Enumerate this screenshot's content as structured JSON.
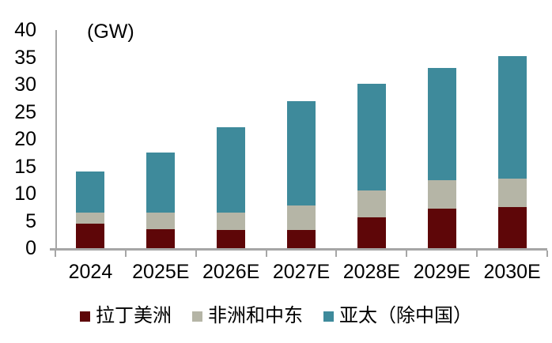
{
  "chart_data": {
    "type": "bar",
    "stacked": true,
    "unit_label": "(GW)",
    "categories": [
      "2024",
      "2025E",
      "2026E",
      "2027E",
      "2028E",
      "2029E",
      "2030E"
    ],
    "series": [
      {
        "name": "拉丁美洲",
        "color": "#5e0608",
        "values": [
          4.5,
          3.5,
          3.3,
          3.3,
          5.6,
          7.3,
          7.6
        ]
      },
      {
        "name": "非洲和中东",
        "color": "#b5b5a6",
        "values": [
          2.0,
          3.0,
          3.2,
          4.6,
          5.0,
          5.2,
          5.1
        ]
      },
      {
        "name": "亚太（除中国）",
        "color": "#3e8a9b",
        "values": [
          7.5,
          11.0,
          15.7,
          19.1,
          19.6,
          20.6,
          22.6
        ]
      }
    ],
    "totals": [
      14.0,
      17.5,
      22.2,
      27.0,
      30.2,
      33.1,
      35.3
    ],
    "ylim": [
      0,
      40
    ],
    "yticks": [
      0,
      5,
      10,
      15,
      20,
      25,
      30,
      35,
      40
    ],
    "grid": false,
    "legend_position": "bottom",
    "colors": {
      "axis": "#a6a6a6",
      "text": "#000000",
      "background": "#ffffff"
    }
  }
}
